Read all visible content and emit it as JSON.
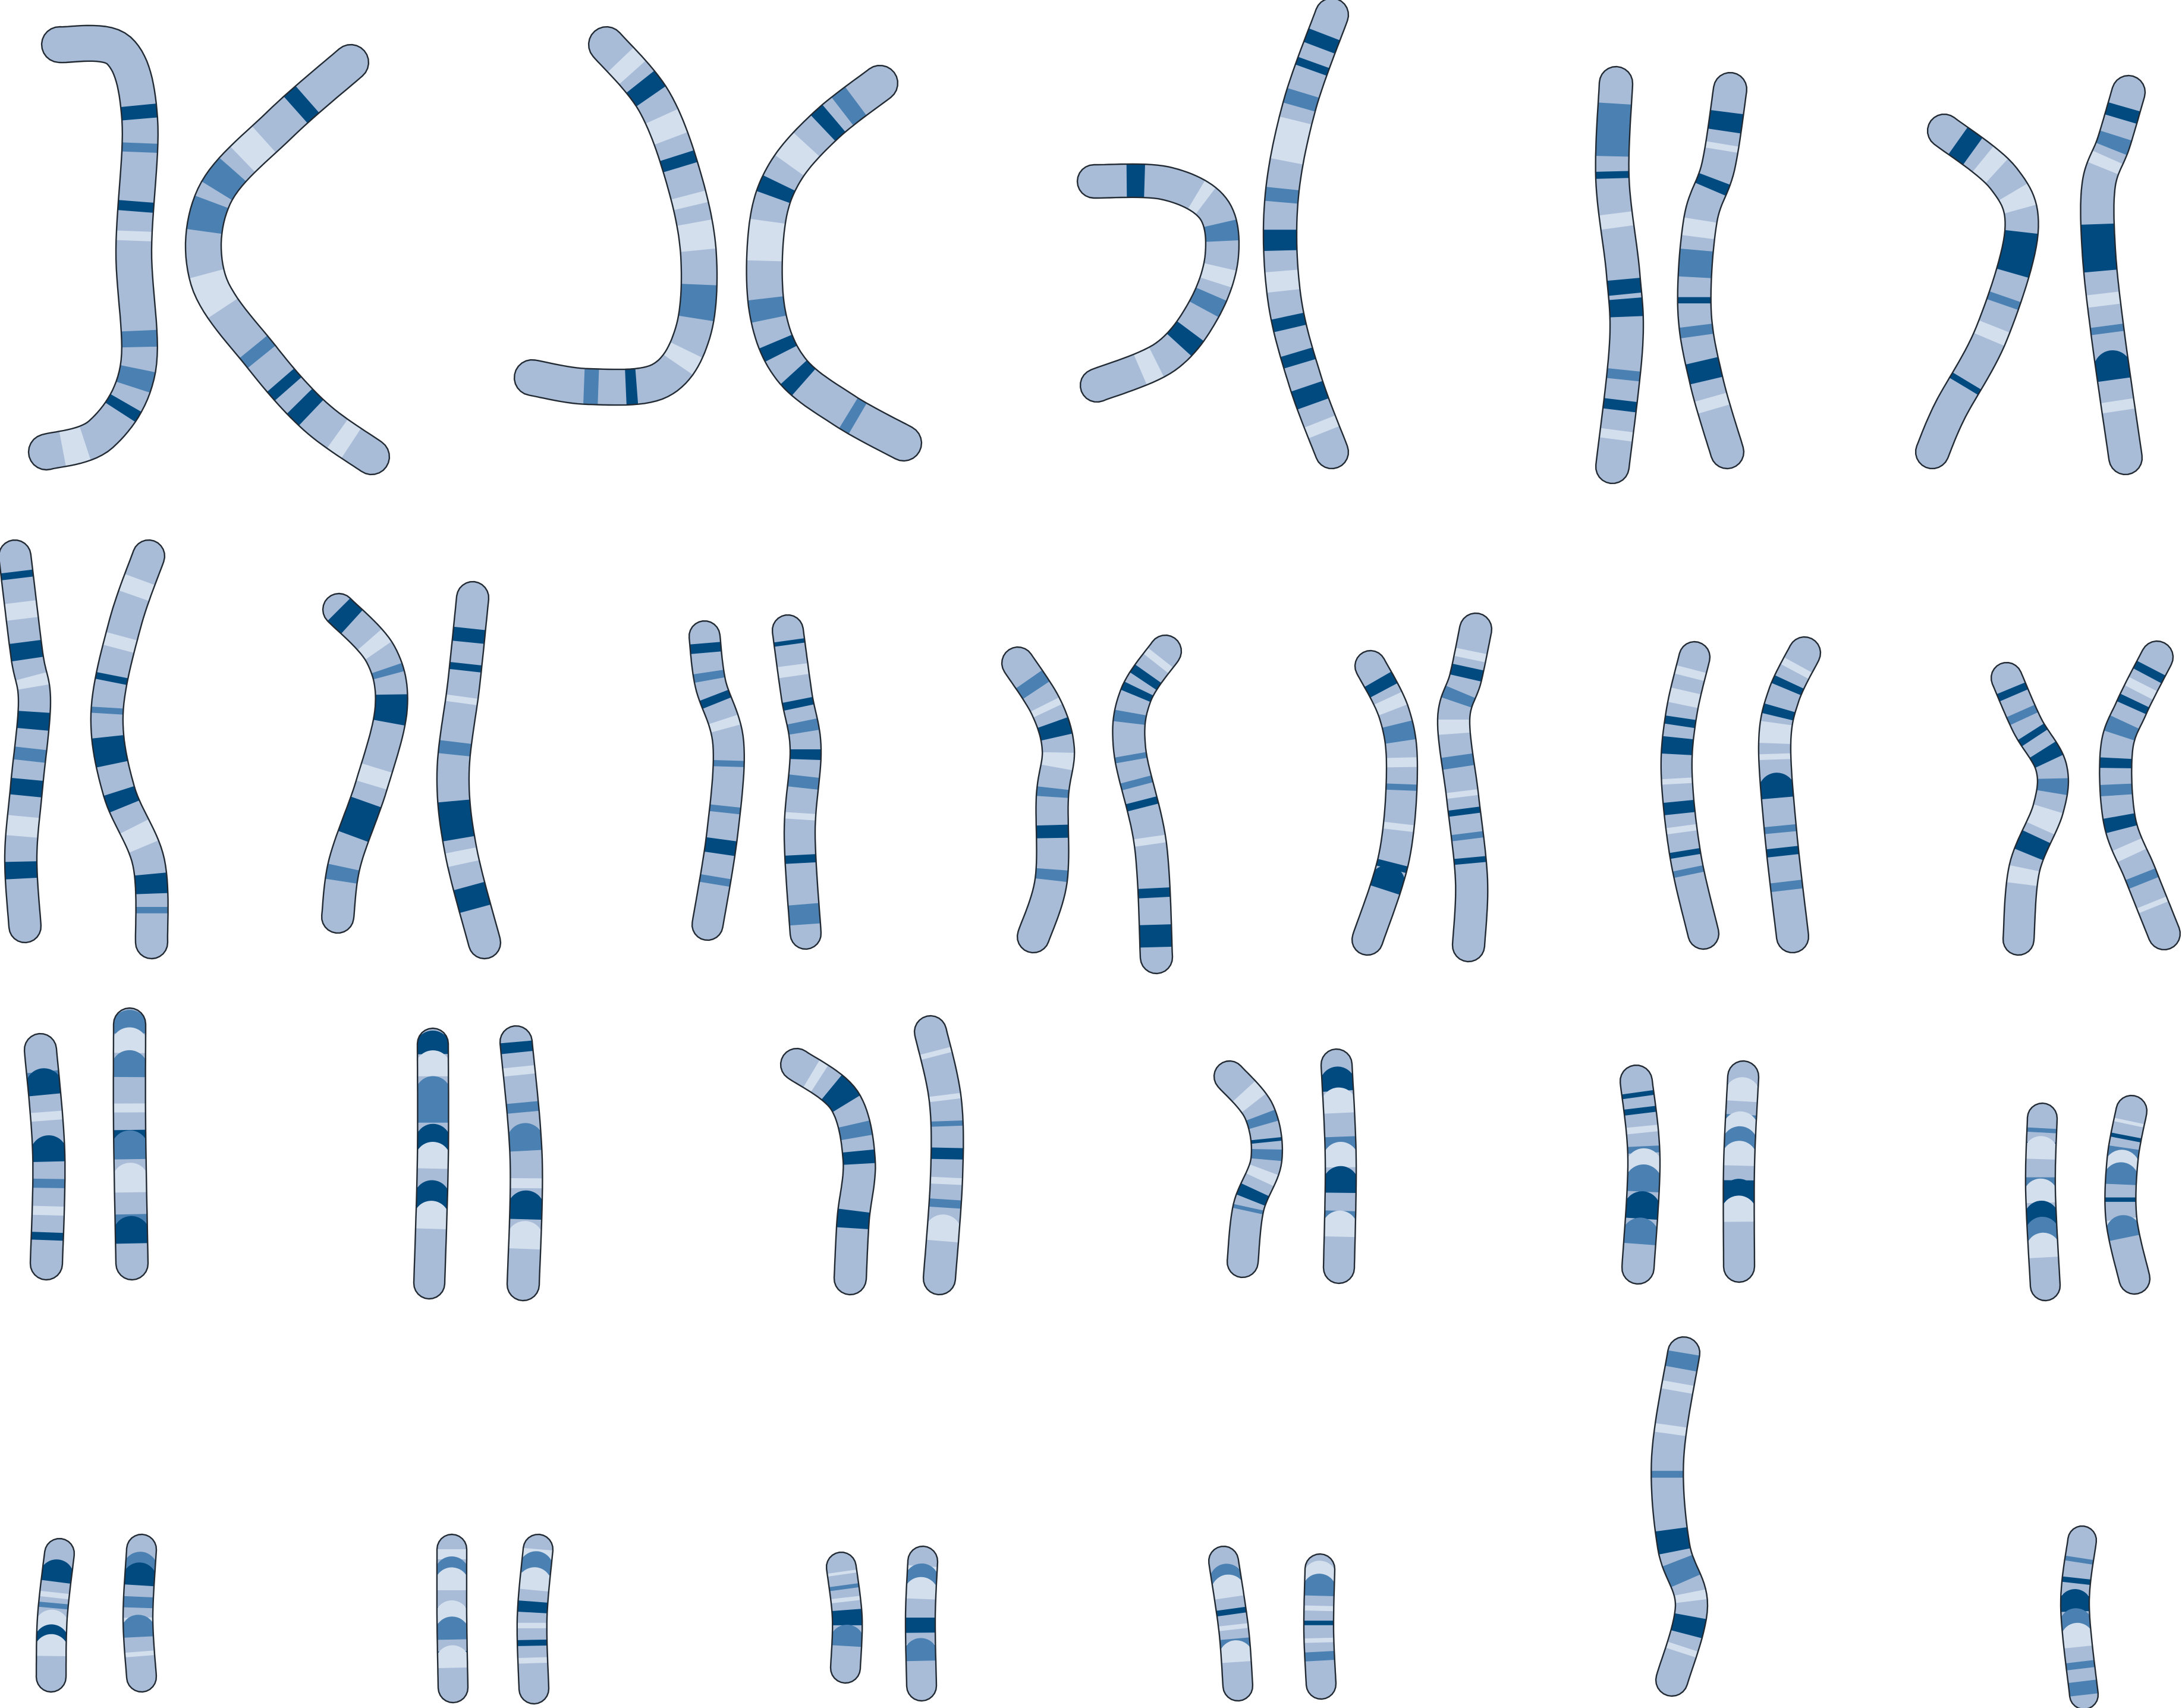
{
  "diagram": {
    "kind": "karyotype",
    "palette": {
      "background": "#ffffff",
      "outline": "#222a33",
      "band_light": "#d3dfed",
      "band_base": "#a8bcd8",
      "band_mid": "#4a80b2",
      "band_dark": "#004a80"
    },
    "pair_count": 24,
    "chromosome_count": 46,
    "sex_chromosomes": "XY",
    "pairs": [
      {
        "id": "pair-1",
        "count": 2
      },
      {
        "id": "pair-2",
        "count": 2
      },
      {
        "id": "pair-3",
        "count": 2
      },
      {
        "id": "pair-4",
        "count": 2
      },
      {
        "id": "pair-5",
        "count": 2
      },
      {
        "id": "pair-6",
        "count": 2
      },
      {
        "id": "pair-7",
        "count": 2
      },
      {
        "id": "pair-8",
        "count": 2
      },
      {
        "id": "pair-9",
        "count": 2
      },
      {
        "id": "pair-10",
        "count": 2
      },
      {
        "id": "pair-11",
        "count": 2
      },
      {
        "id": "pair-12",
        "count": 2
      },
      {
        "id": "pair-13",
        "count": 2
      },
      {
        "id": "pair-14",
        "count": 2
      },
      {
        "id": "pair-15",
        "count": 2
      },
      {
        "id": "pair-16",
        "count": 2
      },
      {
        "id": "pair-17",
        "count": 2
      },
      {
        "id": "pair-18",
        "count": 2
      },
      {
        "id": "pair-19",
        "count": 2
      },
      {
        "id": "pair-20",
        "count": 2
      },
      {
        "id": "pair-21",
        "count": 2
      },
      {
        "id": "pair-22",
        "count": 2
      },
      {
        "id": "pair-x",
        "count": 1
      },
      {
        "id": "pair-y",
        "count": 1
      }
    ]
  }
}
